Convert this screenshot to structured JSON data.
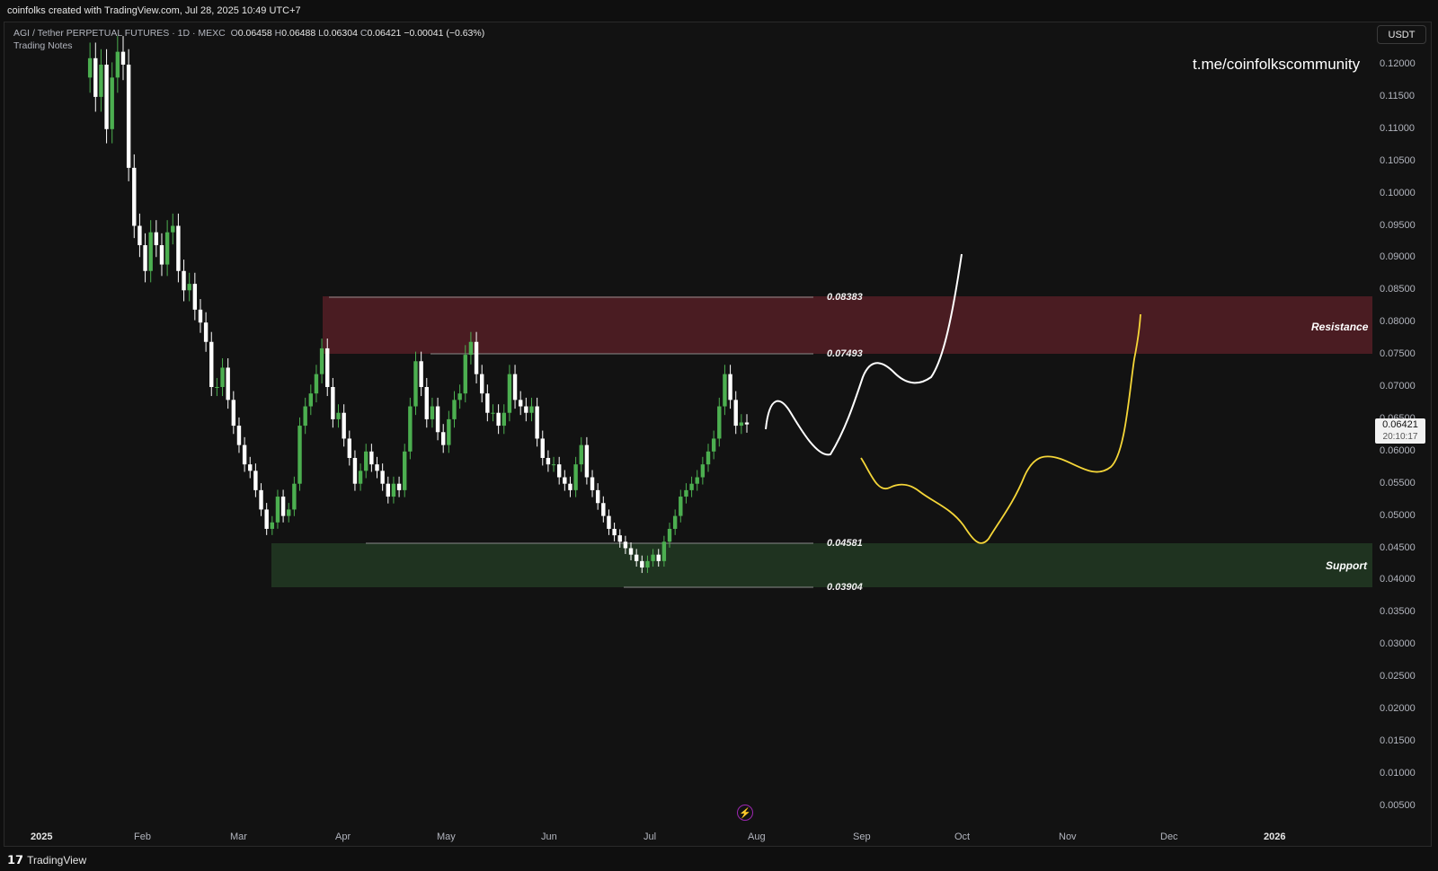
{
  "header": {
    "attribution": "coinfolks created with TradingView.com, Jul 28, 2025 10:49 UTC+7"
  },
  "legend": {
    "symbol": "AGI / Tether PERPETUAL FUTURES · 1D · MEXC",
    "o_label": "O",
    "o": "0.06458",
    "h_label": "H",
    "h": "0.06488",
    "l_label": "L",
    "l": "0.06304",
    "c_label": "C",
    "c": "0.06421",
    "change": "−0.00041 (−0.63%)",
    "subtitle": "Trading Notes"
  },
  "watermark": "t.me/coinfolkscommunity",
  "currency_button": "USDT",
  "last_price": {
    "price": "0.06421",
    "countdown": "20:10:17"
  },
  "y_axis": [
    "0.12000",
    "0.11500",
    "0.11000",
    "0.10500",
    "0.10000",
    "0.09500",
    "0.09000",
    "0.08500",
    "0.08000",
    "0.07500",
    "0.07000",
    "0.06500",
    "0.06000",
    "0.05500",
    "0.05000",
    "0.04500",
    "0.04000",
    "0.03500",
    "0.03000",
    "0.02500",
    "0.02000",
    "0.01500",
    "0.01000",
    "0.00500"
  ],
  "x_axis": [
    "2025",
    "Feb",
    "Mar",
    "Apr",
    "May",
    "Jun",
    "Jul",
    "Aug",
    "Sep",
    "Oct",
    "Nov",
    "Dec",
    "2026"
  ],
  "levels": [
    "0.08383",
    "0.07493",
    "0.04581",
    "0.03904"
  ],
  "zones": {
    "resistance": "Resistance",
    "support": "Support"
  },
  "colors": {
    "background": "#121212",
    "resistance_zone": "#4a1c22",
    "support_zone": "#1f3320",
    "candle_up": "#4caf50",
    "candle_down": "#ffffff",
    "projection_bull": "#ffffff",
    "projection_bear": "#f5d638"
  },
  "footer": {
    "brand": "TradingView",
    "logo_icon": "tradingview-logo-icon",
    "bolt_icon": "lightning-icon"
  },
  "chart_data": {
    "type": "candlestick",
    "y_range": [
      0.0,
      0.122
    ],
    "ohlc_daily_closes": [
      0.118,
      0.121,
      0.115,
      0.12,
      0.11,
      0.118,
      0.122,
      0.12,
      0.104,
      0.095,
      0.092,
      0.088,
      0.094,
      0.092,
      0.089,
      0.094,
      0.095,
      0.088,
      0.085,
      0.086,
      0.082,
      0.08,
      0.077,
      0.07,
      0.07,
      0.073,
      0.068,
      0.064,
      0.061,
      0.058,
      0.057,
      0.054,
      0.051,
      0.048,
      0.049,
      0.053,
      0.05,
      0.051,
      0.055,
      0.064,
      0.067,
      0.069,
      0.072,
      0.076,
      0.07,
      0.065,
      0.066,
      0.062,
      0.059,
      0.055,
      0.057,
      0.06,
      0.058,
      0.057,
      0.055,
      0.053,
      0.055,
      0.054,
      0.06,
      0.067,
      0.074,
      0.07,
      0.065,
      0.067,
      0.063,
      0.061,
      0.065,
      0.068,
      0.069,
      0.075,
      0.077,
      0.072,
      0.069,
      0.066,
      0.066,
      0.064,
      0.066,
      0.072,
      0.068,
      0.067,
      0.066,
      0.067,
      0.062,
      0.059,
      0.058,
      0.058,
      0.056,
      0.055,
      0.054,
      0.058,
      0.061,
      0.056,
      0.054,
      0.052,
      0.05,
      0.048,
      0.047,
      0.046,
      0.045,
      0.044,
      0.043,
      0.042,
      0.043,
      0.044,
      0.043,
      0.046,
      0.048,
      0.05,
      0.053,
      0.054,
      0.055,
      0.056,
      0.058,
      0.06,
      0.062,
      0.067,
      0.072,
      0.068,
      0.064,
      0.0645,
      0.0642
    ]
  }
}
